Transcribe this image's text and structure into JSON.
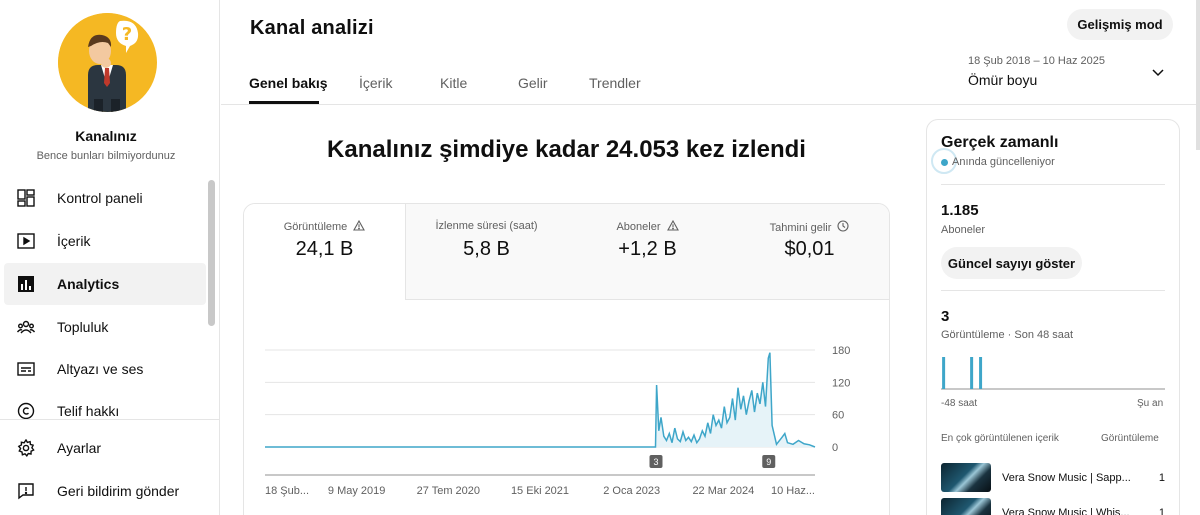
{
  "channel": {
    "name": "Kanalınız",
    "subtitle": "Bence bunları bilmiyordunuz"
  },
  "sidebar": {
    "items": [
      {
        "label": "Kontrol paneli",
        "icon": "dashboard-icon"
      },
      {
        "label": "İçerik",
        "icon": "content-icon"
      },
      {
        "label": "Analytics",
        "icon": "analytics-icon",
        "active": true
      },
      {
        "label": "Topluluk",
        "icon": "community-icon"
      },
      {
        "label": "Altyazı ve ses",
        "icon": "subtitles-icon"
      },
      {
        "label": "Telif hakkı",
        "icon": "copyright-icon"
      }
    ],
    "footer": [
      {
        "label": "Ayarlar",
        "icon": "gear-icon"
      },
      {
        "label": "Geri bildirim gönder",
        "icon": "feedback-icon"
      }
    ]
  },
  "header": {
    "title": "Kanal analizi",
    "advanced_label": "Gelişmiş mod",
    "tabs": [
      {
        "label": "Genel bakış",
        "active": true
      },
      {
        "label": "İçerik"
      },
      {
        "label": "Kitle"
      },
      {
        "label": "Gelir"
      },
      {
        "label": "Trendler"
      }
    ],
    "date_range": "18 Şub 2018 – 10 Haz 2025",
    "date_period": "Ömür boyu"
  },
  "main": {
    "headline": "Kanalınız şimdiye kadar 24.053 kez izlendi",
    "metrics": [
      {
        "label": "Görüntüleme",
        "value": "24,1 B",
        "icon": "warning-icon",
        "active": true
      },
      {
        "label": "İzlenme süresi (saat)",
        "value": "5,8 B"
      },
      {
        "label": "Aboneler",
        "value": "+1,2 B",
        "icon": "warning-icon"
      },
      {
        "label": "Tahmini gelir",
        "value": "$0,01",
        "icon": "clock-icon"
      }
    ]
  },
  "chart_data": {
    "type": "line",
    "x_labels": [
      "18 Şub...",
      "9 May 2019",
      "27 Tem 2020",
      "15 Eki 2021",
      "2 Oca 2023",
      "22 Mar 2024",
      "10 Haz..."
    ],
    "y_ticks": [
      0,
      60,
      120,
      180
    ],
    "ylim": [
      0,
      180
    ],
    "markers": [
      {
        "label": "3",
        "position": 0.71
      },
      {
        "label": "9",
        "position": 0.915
      }
    ],
    "series": [
      {
        "x": [
          0.0,
          0.71,
          0.712,
          0.716,
          0.72,
          0.725,
          0.73,
          0.735,
          0.74,
          0.745,
          0.75,
          0.755,
          0.76,
          0.765,
          0.77,
          0.775,
          0.78,
          0.785,
          0.79,
          0.795,
          0.8,
          0.805,
          0.81,
          0.815,
          0.82,
          0.825,
          0.83,
          0.835,
          0.84,
          0.845,
          0.85,
          0.855,
          0.86,
          0.865,
          0.87,
          0.875,
          0.88,
          0.885,
          0.89,
          0.895,
          0.9,
          0.905,
          0.91,
          0.915,
          0.918,
          0.922,
          0.93,
          0.94,
          0.945,
          0.95,
          0.96,
          0.97,
          0.98,
          0.99,
          1.0
        ],
        "y": [
          0,
          0,
          115,
          30,
          55,
          20,
          12,
          25,
          8,
          35,
          15,
          10,
          28,
          12,
          18,
          10,
          22,
          8,
          15,
          30,
          20,
          45,
          25,
          60,
          40,
          50,
          35,
          75,
          45,
          55,
          90,
          50,
          110,
          70,
          95,
          60,
          85,
          105,
          65,
          100,
          80,
          120,
          75,
          165,
          175,
          40,
          5,
          18,
          25,
          8,
          5,
          12,
          6,
          4,
          0
        ]
      }
    ]
  },
  "realtime": {
    "title": "Gerçek zamanlı",
    "live_label": "Anında güncelleniyor",
    "subscribers": "1.185",
    "subscribers_label": "Aboneler",
    "show_count_label": "Güncel sayıyı göster",
    "views": "3",
    "views_label": "Görüntüleme · Son 48 saat",
    "axis_left": "-48 saat",
    "axis_right": "Şu an",
    "top_content_label": "En çok görüntülenen içerik",
    "top_content_col": "Görüntüleme",
    "bars": [
      {
        "position": 0.005,
        "value": 1
      },
      {
        "position": 0.13,
        "value": 1
      },
      {
        "position": 0.17,
        "value": 1
      }
    ],
    "items": [
      {
        "title": "Vera Snow Music | Sapp...",
        "views": "1"
      },
      {
        "title": "Vera Snow Music | Whis...",
        "views": "1"
      }
    ]
  }
}
